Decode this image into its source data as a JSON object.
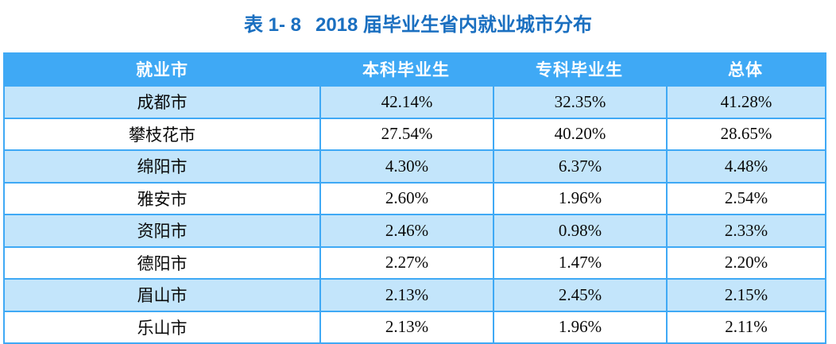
{
  "title": {
    "label": "表 1- 8",
    "text": "2018 届毕业生省内就业城市分布"
  },
  "colors": {
    "title_text": "#1a6fc0",
    "header_bg": "#3fa9f5",
    "header_text": "#ffffff",
    "border": "#3fa9f5",
    "row_alt_bg": "#c3e5fb"
  },
  "table": {
    "columns": [
      "就业市",
      "本科毕业生",
      "专科毕业生",
      "总体"
    ],
    "rows": [
      [
        "成都市",
        "42.14%",
        "32.35%",
        "41.28%"
      ],
      [
        "攀枝花市",
        "27.54%",
        "40.20%",
        "28.65%"
      ],
      [
        "绵阳市",
        "4.30%",
        "6.37%",
        "4.48%"
      ],
      [
        "雅安市",
        "2.60%",
        "1.96%",
        "2.54%"
      ],
      [
        "资阳市",
        "2.46%",
        "0.98%",
        "2.33%"
      ],
      [
        "德阳市",
        "2.27%",
        "1.47%",
        "2.20%"
      ],
      [
        "眉山市",
        "2.13%",
        "2.45%",
        "2.15%"
      ],
      [
        "乐山市",
        "2.13%",
        "1.96%",
        "2.11%"
      ]
    ]
  }
}
